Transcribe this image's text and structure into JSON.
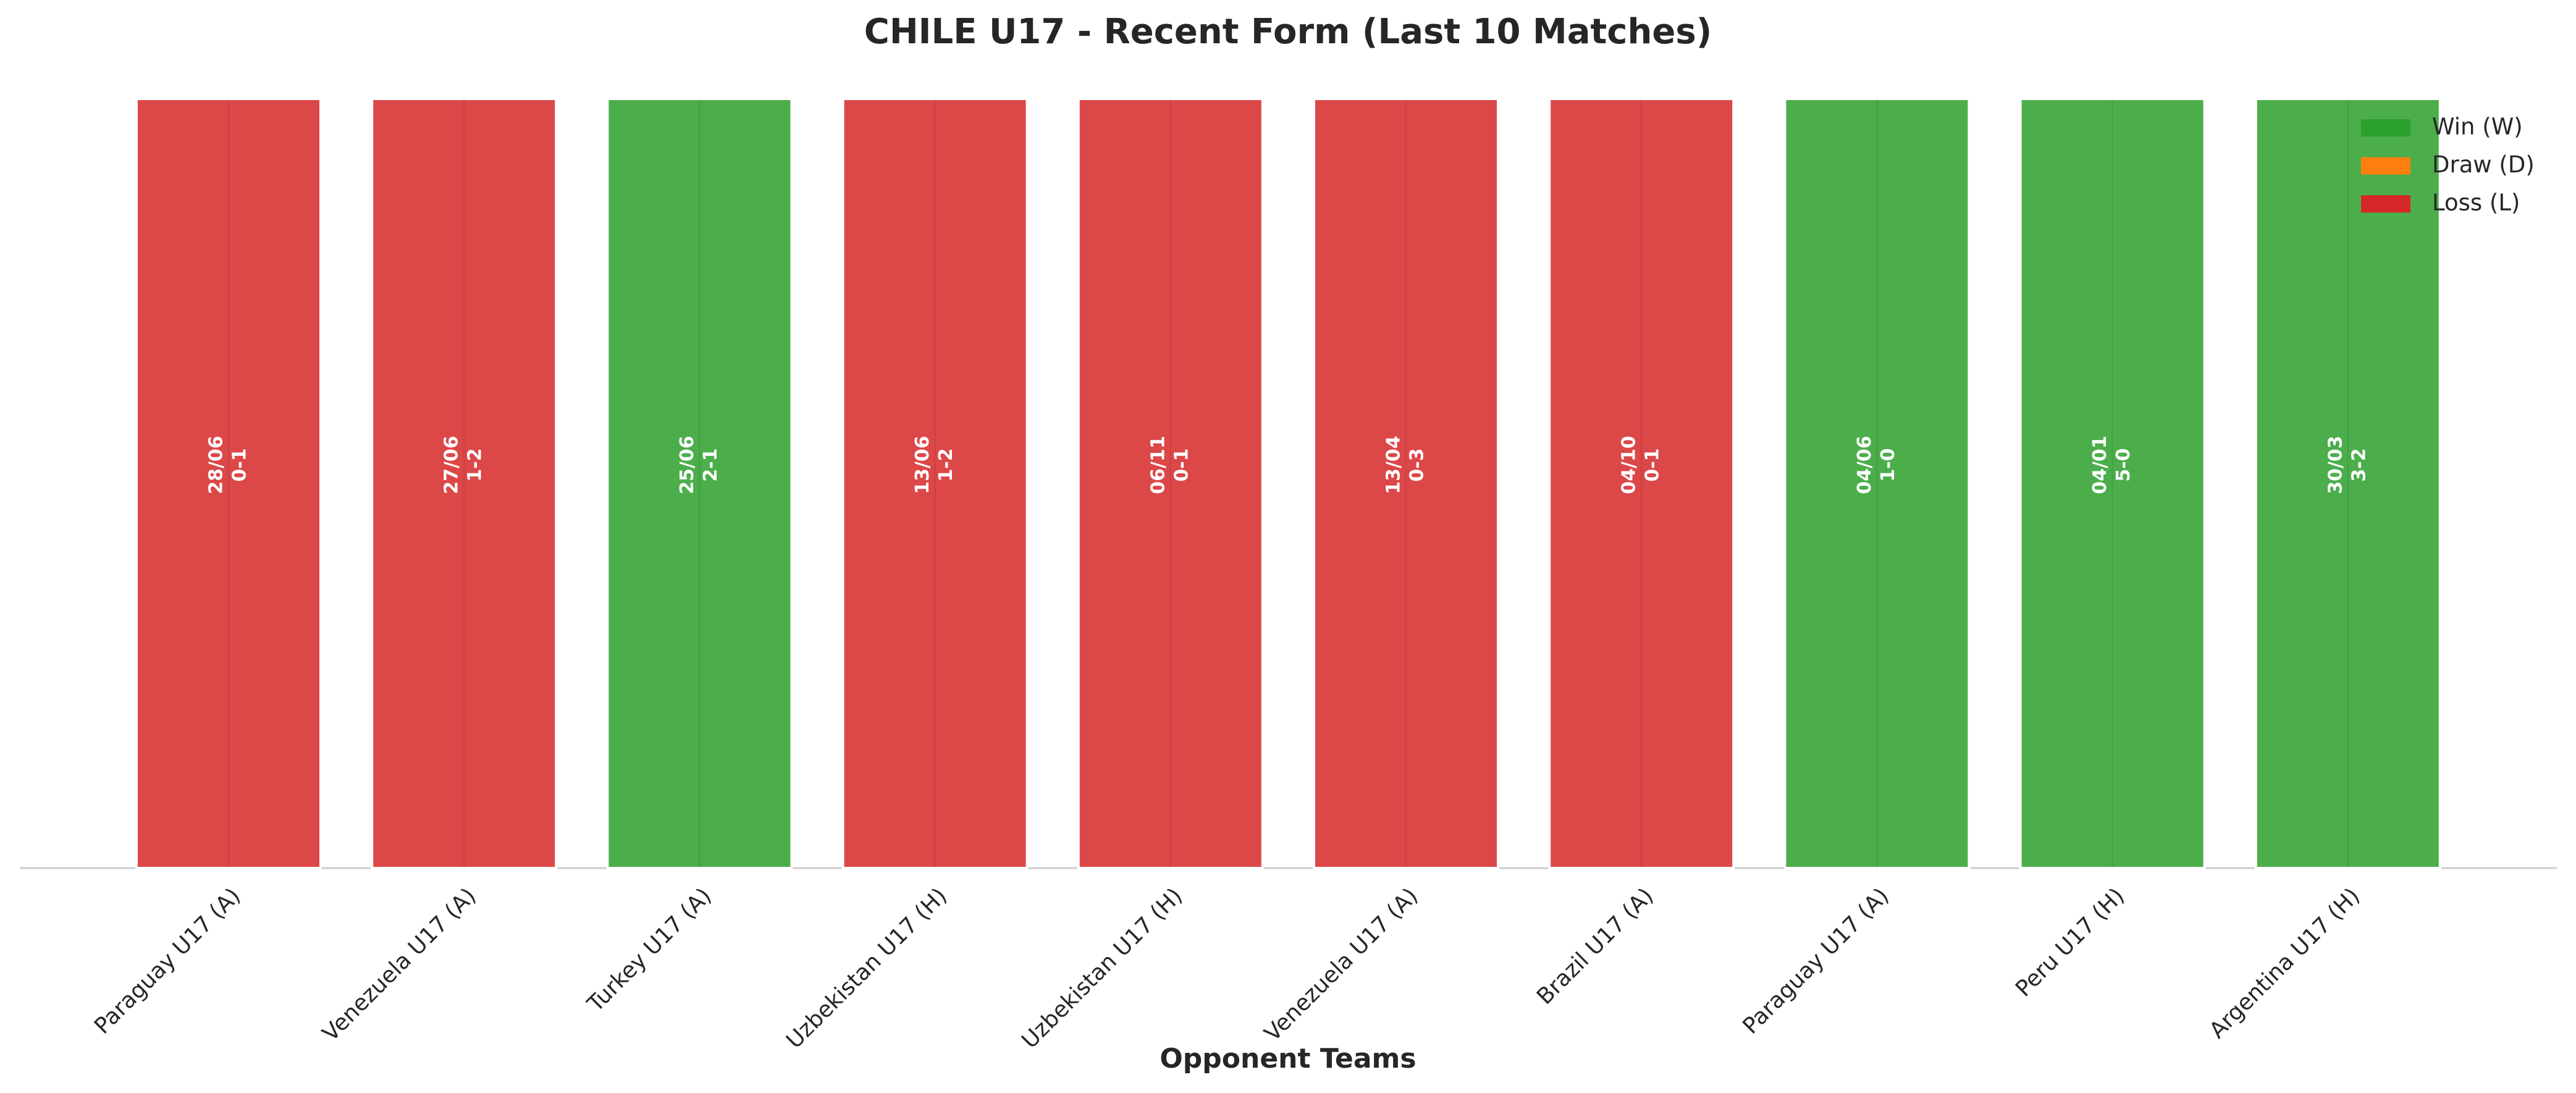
{
  "chart_data": {
    "type": "bar",
    "title": "CHILE U17 - Recent Form (Last 10 Matches)",
    "xlabel": "Opponent Teams",
    "categories": [
      "Paraguay U17 (A)",
      "Venezuela U17 (A)",
      "Turkey U17 (A)",
      "Uzbekistan U17 (H)",
      "Uzbekistan U17 (H)",
      "Venezuela U17 (A)",
      "Brazil U17 (A)",
      "Paraguay U17 (A)",
      "Peru U17 (H)",
      "Argentina U17 (H)"
    ],
    "values": [
      1,
      1,
      1,
      1,
      1,
      1,
      1,
      1,
      1,
      1
    ],
    "dates": [
      "28/06",
      "27/06",
      "25/06",
      "13/06",
      "06/11",
      "13/04",
      "04/10",
      "04/06",
      "04/01",
      "30/03"
    ],
    "scores": [
      "0-1",
      "1-2",
      "2-1",
      "1-2",
      "0-1",
      "0-3",
      "0-1",
      "1-0",
      "5-0",
      "3-2"
    ],
    "colors": [
      "#d62728",
      "#d62728",
      "#2ca02c",
      "#d62728",
      "#d62728",
      "#d62728",
      "#d62728",
      "#2ca02c",
      "#2ca02c",
      "#2ca02c"
    ],
    "ylim": [
      0,
      1
    ],
    "legend": [
      {
        "name": "Win (W)",
        "color": "#2ca02c"
      },
      {
        "name": "Draw (D)",
        "color": "#ff7f0e"
      },
      {
        "name": "Loss (L)",
        "color": "#d62728"
      }
    ],
    "legend_position": "upper-right"
  }
}
